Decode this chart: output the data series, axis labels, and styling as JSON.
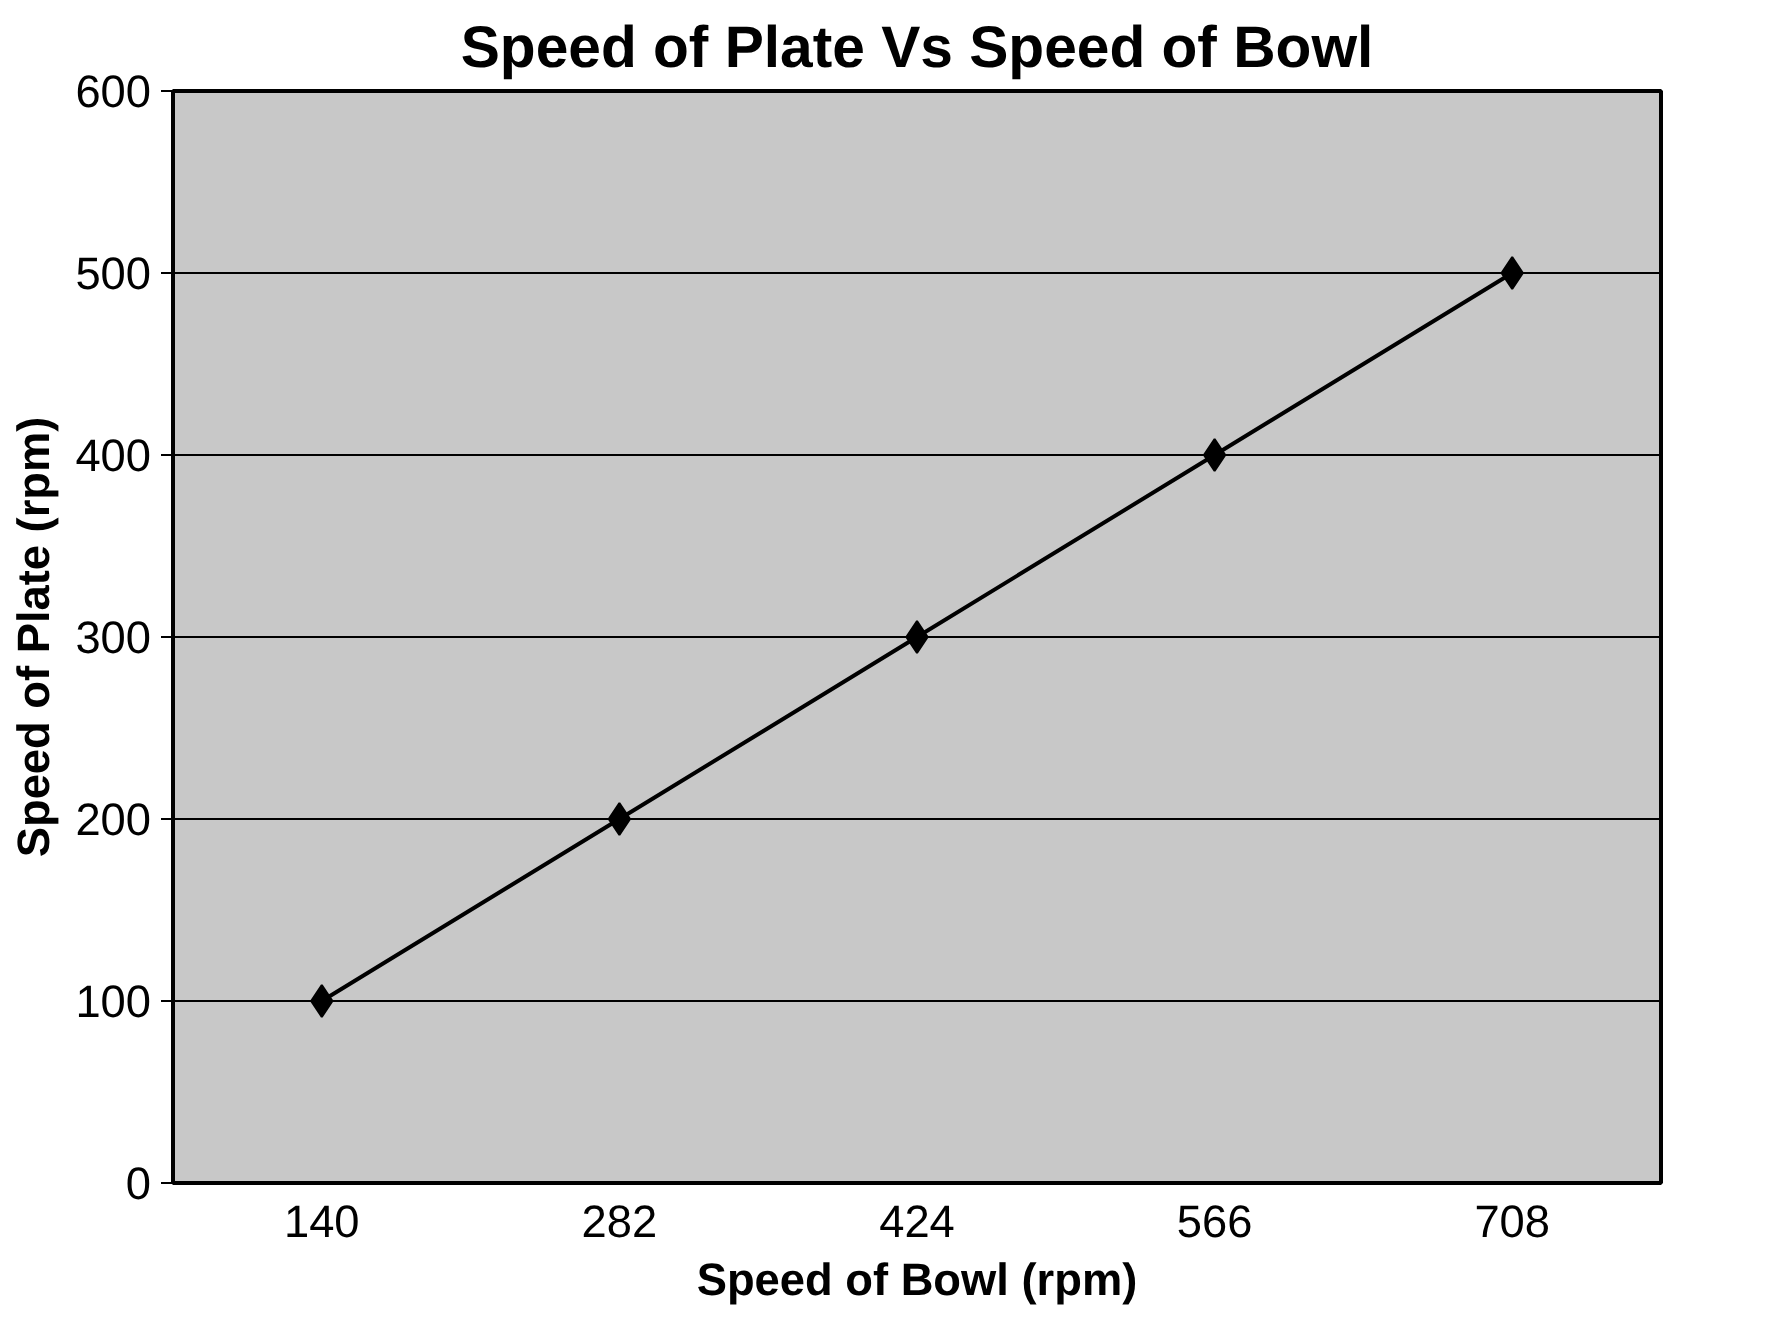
{
  "chart_data": {
    "type": "line",
    "title": "Speed of Plate Vs Speed of Bowl",
    "xlabel": "Speed of Bowl (rpm)",
    "ylabel": "Speed of Plate (rpm)",
    "categories": [
      "140",
      "282",
      "424",
      "566",
      "708"
    ],
    "series": [
      {
        "color": "#000000",
        "values": [
          100,
          200,
          300,
          400,
          500
        ]
      }
    ],
    "ylim": [
      0,
      600
    ],
    "yticks": [
      0,
      100,
      200,
      300,
      400,
      500,
      600
    ],
    "grid": "y",
    "marker": "diamond",
    "line_style": "solid"
  }
}
